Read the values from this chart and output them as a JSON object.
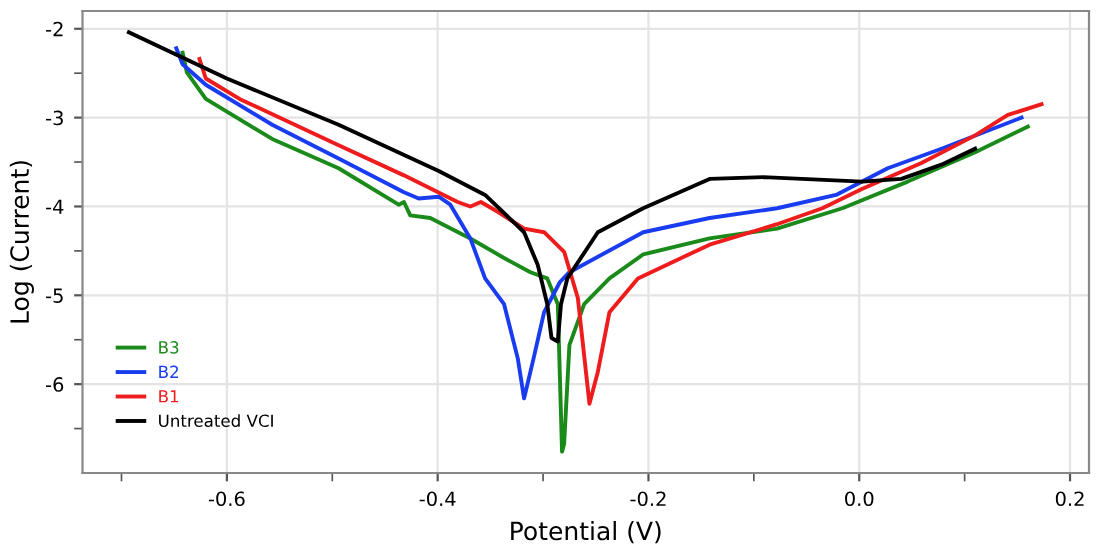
{
  "chart_data": {
    "type": "line",
    "xlabel": "Potential (V)",
    "ylabel": "Log (Current)",
    "xlim": [
      -0.737,
      0.218
    ],
    "ylim": [
      -7.0,
      -1.8
    ],
    "xticks": [
      {
        "value": -0.7,
        "label": null
      },
      {
        "value": -0.6,
        "label": "-0.6"
      },
      {
        "value": -0.5,
        "label": null
      },
      {
        "value": -0.4,
        "label": "-0.4"
      },
      {
        "value": -0.3,
        "label": null
      },
      {
        "value": -0.2,
        "label": "-0.2"
      },
      {
        "value": -0.1,
        "label": null
      },
      {
        "value": 0,
        "label": "0.0"
      },
      {
        "value": 0.1,
        "label": null
      },
      {
        "value": 0.2,
        "label": "0.2"
      }
    ],
    "yticks": [
      -2,
      {
        "value": -2.5,
        "label": null
      },
      -3,
      {
        "value": -3.5,
        "label": null
      },
      -4,
      {
        "value": -4.5,
        "label": null
      },
      -5,
      {
        "value": -5.5,
        "label": null
      },
      -6,
      {
        "value": -6.5,
        "label": null
      }
    ],
    "grid": true,
    "legend": "bottom left",
    "marker": "none",
    "line_style": "solid",
    "series": [
      {
        "name": "B3",
        "color": "#1a8a1a",
        "x": [
          -0.642,
          -0.638,
          -0.62,
          -0.557,
          -0.494,
          -0.437,
          -0.432,
          -0.426,
          -0.407,
          -0.369,
          -0.337,
          -0.312,
          -0.296,
          -0.286,
          -0.282,
          -0.28,
          -0.275,
          -0.261,
          -0.237,
          -0.205,
          -0.142,
          -0.078,
          -0.016,
          0.046,
          0.11,
          0.16
        ],
        "values": [
          -2.27,
          -2.49,
          -2.79,
          -3.24,
          -3.57,
          -3.98,
          -3.95,
          -4.1,
          -4.13,
          -4.36,
          -4.58,
          -4.74,
          -4.81,
          -5.1,
          -6.76,
          -6.67,
          -5.56,
          -5.1,
          -4.81,
          -4.54,
          -4.36,
          -4.25,
          -4.02,
          -3.72,
          -3.39,
          -3.1
        ]
      },
      {
        "name": "B2",
        "color": "#1a3cf0",
        "x": [
          -0.648,
          -0.642,
          -0.62,
          -0.557,
          -0.494,
          -0.432,
          -0.418,
          -0.399,
          -0.388,
          -0.369,
          -0.355,
          -0.337,
          -0.324,
          -0.318,
          -0.309,
          -0.299,
          -0.284,
          -0.275,
          -0.205,
          -0.142,
          -0.078,
          -0.022,
          0.027,
          0.078,
          0.154
        ],
        "values": [
          -2.22,
          -2.4,
          -2.63,
          -3.08,
          -3.46,
          -3.84,
          -3.91,
          -3.89,
          -3.98,
          -4.36,
          -4.81,
          -5.1,
          -5.71,
          -6.16,
          -5.71,
          -5.19,
          -4.85,
          -4.74,
          -4.29,
          -4.13,
          -4.02,
          -3.87,
          -3.57,
          -3.35,
          -3.0
        ]
      },
      {
        "name": "B1",
        "color": "#ee1c1c",
        "x": [
          -0.626,
          -0.62,
          -0.588,
          -0.494,
          -0.432,
          -0.381,
          -0.369,
          -0.359,
          -0.343,
          -0.318,
          -0.299,
          -0.28,
          -0.267,
          -0.256,
          -0.248,
          -0.237,
          -0.21,
          -0.142,
          -0.078,
          -0.035,
          0.003,
          0.059,
          0.11,
          0.141,
          0.173
        ],
        "values": [
          -2.34,
          -2.56,
          -2.79,
          -3.31,
          -3.65,
          -3.95,
          -4.0,
          -3.95,
          -4.06,
          -4.25,
          -4.29,
          -4.51,
          -5.03,
          -6.22,
          -5.86,
          -5.19,
          -4.81,
          -4.43,
          -4.2,
          -4.02,
          -3.8,
          -3.51,
          -3.2,
          -2.97,
          -2.85
        ]
      },
      {
        "name": "Untreated VCI",
        "color": "#000000",
        "x": [
          -0.693,
          -0.6,
          -0.494,
          -0.399,
          -0.355,
          -0.318,
          -0.305,
          -0.296,
          -0.292,
          -0.286,
          -0.283,
          -0.277,
          -0.248,
          -0.205,
          -0.142,
          -0.091,
          0.003,
          0.04,
          0.078,
          0.11
        ],
        "values": [
          -2.04,
          -2.56,
          -3.08,
          -3.6,
          -3.87,
          -4.29,
          -4.66,
          -5.1,
          -5.48,
          -5.52,
          -5.1,
          -4.81,
          -4.29,
          -4.02,
          -3.69,
          -3.67,
          -3.72,
          -3.69,
          -3.53,
          -3.35
        ]
      }
    ]
  }
}
